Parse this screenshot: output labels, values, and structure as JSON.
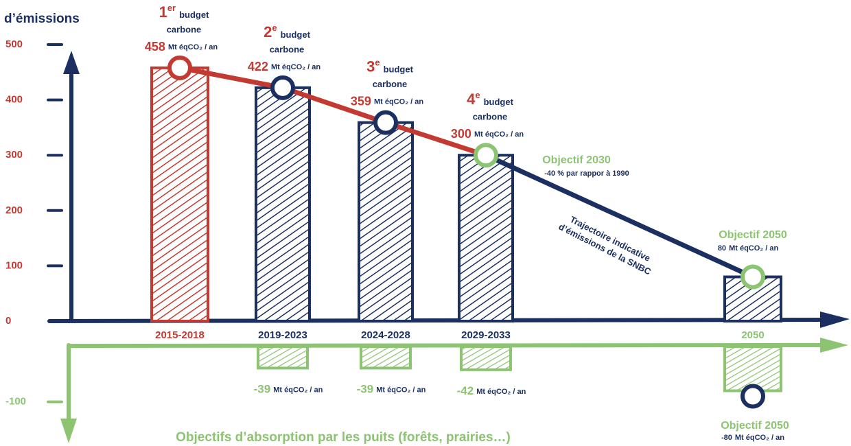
{
  "chart_data": {
    "type": "bar",
    "y_axis_label": "d’émissions",
    "categories": [
      "2015-2018",
      "2019-2023",
      "2024-2028",
      "2029-2033",
      "2050"
    ],
    "category_colors": [
      "#c33a32",
      "#1b3060",
      "#1b3060",
      "#1b3060",
      "#8cc472"
    ],
    "ylim": [
      -100,
      500
    ],
    "yticks": [
      -100,
      0,
      100,
      200,
      300,
      400,
      500
    ],
    "ytick_colors": [
      "#8cc472",
      "#c33a32",
      "#c33a32",
      "#c33a32",
      "#c33a32",
      "#c33a32",
      "#c33a32"
    ],
    "unit": "Mt éqCO₂ / an",
    "budget_labels": [
      {
        "ordinal": "1",
        "suffix": "er"
      },
      {
        "ordinal": "2",
        "suffix": "e"
      },
      {
        "ordinal": "3",
        "suffix": "e"
      },
      {
        "ordinal": "4",
        "suffix": "e"
      }
    ],
    "budget_text": [
      "budget",
      "carbone"
    ],
    "series": [
      {
        "values": [
          458,
          422,
          359,
          300,
          80
        ],
        "bar_colors": [
          "#c33a32",
          "#1b3060",
          "#1b3060",
          "#1b3060",
          "#1b3060"
        ],
        "marker_colors": [
          "#c33a32",
          "#1b3060",
          "#1b3060",
          "#8cc472",
          "#8cc472"
        ],
        "line_segment_colors": [
          "#c33a32",
          "#c33a32",
          "#c33a32",
          "#1b3060"
        ]
      },
      {
        "values": [
          null,
          -39,
          -39,
          -42,
          -80
        ],
        "color": "#8cc472",
        "markers": [
          false,
          false,
          false,
          false,
          true
        ],
        "marker_color": "#1b3060"
      }
    ],
    "annotations": {
      "objective_2030": "Objectif 2030",
      "objective_2030_note": "-40 % par rappor à 1990",
      "trajectory": [
        "Trajectoire indicative",
        "d’émissions de la SNBC"
      ],
      "objective_2050": "Objectif 2050",
      "objective_2050_sink": "Objectif 2050",
      "sink_title": "Objectifs d’absorption par les puits (forêts, prairies…)"
    }
  }
}
